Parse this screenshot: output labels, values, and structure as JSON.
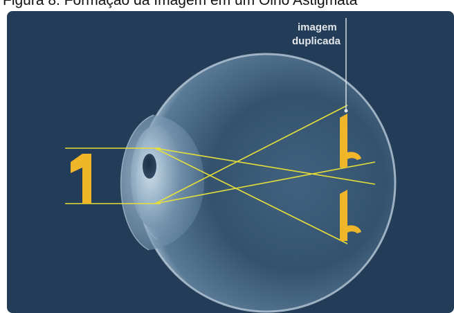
{
  "caption": "Figura 8. Formação da Imagem em um Olho Astigmata",
  "label": {
    "line1": "imagem",
    "line2": "duplicada"
  },
  "colors": {
    "background": "#233d58",
    "ray": "#e6df3a",
    "object": "#f0b62a",
    "label": "#e3e6ea"
  }
}
